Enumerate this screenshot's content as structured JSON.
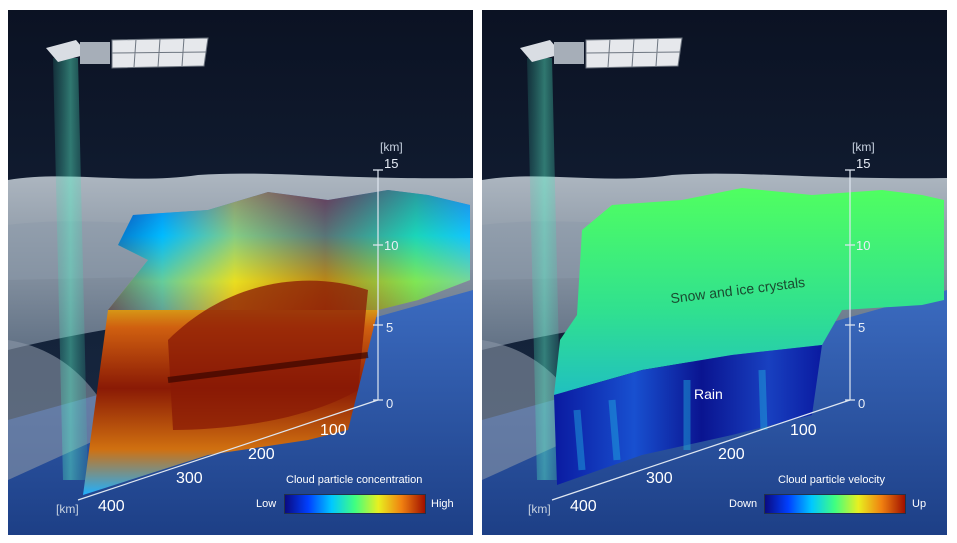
{
  "left_panel": {
    "unit_top": "[km]",
    "altitude_ticks": [
      "15",
      "10",
      "5",
      "0"
    ],
    "distance_ticks": [
      "100",
      "200",
      "300",
      "400"
    ],
    "unit_bottom": "[km]",
    "colorbar": {
      "title": "Cloud particle concentration",
      "low": "Low",
      "high": "High"
    }
  },
  "right_panel": {
    "unit_top": "[km]",
    "altitude_ticks": [
      "15",
      "10",
      "5",
      "0"
    ],
    "distance_ticks": [
      "100",
      "200",
      "300",
      "400"
    ],
    "unit_bottom": "[km]",
    "label_upper": "Snow and ice crystals",
    "label_lower": "Rain",
    "colorbar": {
      "title": "Cloud particle velocity",
      "low": "Down",
      "high": "Up"
    }
  },
  "colors": {
    "jet_scale": [
      "#0a0a80",
      "#0040ff",
      "#00c8ff",
      "#40ff80",
      "#e8f020",
      "#f08010",
      "#a01000"
    ],
    "sky": "#0a1224",
    "ground": "#2a4f9a"
  }
}
